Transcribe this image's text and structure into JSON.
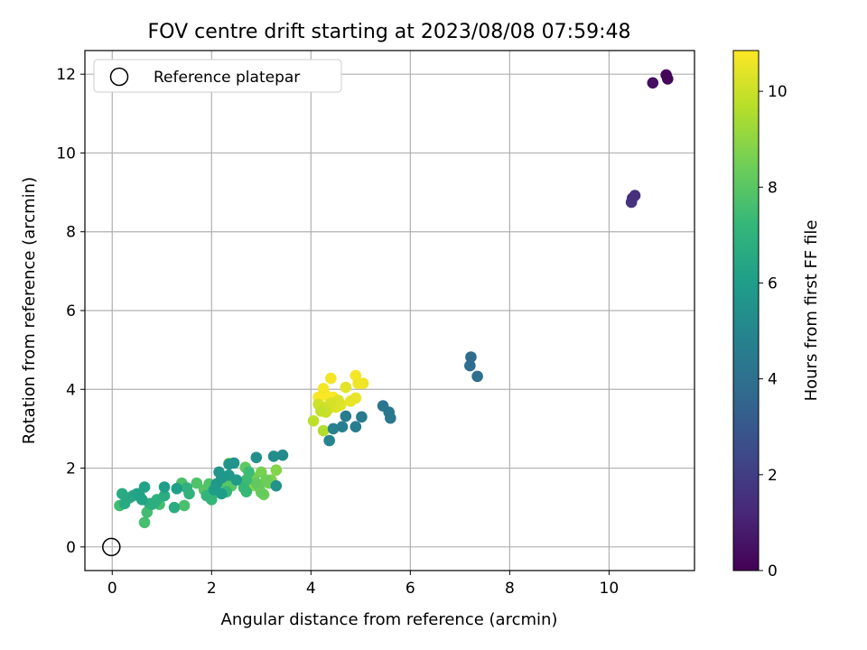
{
  "chart_data": {
    "type": "scatter",
    "title": "FOV centre drift starting at 2023/08/08 07:59:48",
    "xlabel": "Angular distance from reference (arcmin)",
    "ylabel": "Rotation from reference (arcmin)",
    "xlim": [
      -0.55,
      11.72
    ],
    "ylim": [
      -0.6,
      12.6
    ],
    "xticks": [
      0,
      2,
      4,
      6,
      8,
      10
    ],
    "yticks": [
      0,
      2,
      4,
      6,
      8,
      10,
      12
    ],
    "grid": true,
    "legend": {
      "position": "top-left",
      "entries": [
        {
          "label": "Reference platepar",
          "marker": "open-circle"
        }
      ]
    },
    "reference": {
      "x": 0,
      "y": 0
    },
    "colorbar": {
      "label": "Hours from first FF file",
      "min": 0,
      "max": 10.85,
      "ticks": [
        0,
        2,
        4,
        6,
        8,
        10
      ],
      "colormap": "viridis"
    },
    "colormap_stops": [
      "#440154",
      "#482878",
      "#3e4989",
      "#31688e",
      "#26828e",
      "#1f9e89",
      "#35b779",
      "#6ece58",
      "#b5de2b",
      "#fde725"
    ],
    "points": [
      {
        "x": 11.15,
        "y": 11.98,
        "c": 0.1
      },
      {
        "x": 11.18,
        "y": 11.88,
        "c": 0.2
      },
      {
        "x": 10.88,
        "y": 11.78,
        "c": 0.4
      },
      {
        "x": 10.52,
        "y": 8.92,
        "c": 1.5
      },
      {
        "x": 10.45,
        "y": 8.75,
        "c": 1.7
      },
      {
        "x": 10.47,
        "y": 8.85,
        "c": 1.6
      },
      {
        "x": 7.22,
        "y": 4.82,
        "c": 3.8
      },
      {
        "x": 7.2,
        "y": 4.6,
        "c": 3.9
      },
      {
        "x": 7.35,
        "y": 4.33,
        "c": 4.0
      },
      {
        "x": 5.45,
        "y": 3.58,
        "c": 4.2
      },
      {
        "x": 5.57,
        "y": 3.42,
        "c": 4.3
      },
      {
        "x": 5.6,
        "y": 3.27,
        "c": 4.3
      },
      {
        "x": 5.02,
        "y": 3.3,
        "c": 4.5
      },
      {
        "x": 4.9,
        "y": 3.05,
        "c": 4.6
      },
      {
        "x": 4.7,
        "y": 3.32,
        "c": 4.5
      },
      {
        "x": 4.63,
        "y": 3.05,
        "c": 4.7
      },
      {
        "x": 4.45,
        "y": 3.0,
        "c": 4.8
      },
      {
        "x": 4.37,
        "y": 2.7,
        "c": 4.9
      },
      {
        "x": 3.43,
        "y": 2.33,
        "c": 5.2
      },
      {
        "x": 3.25,
        "y": 2.3,
        "c": 5.3
      },
      {
        "x": 2.9,
        "y": 2.27,
        "c": 5.4
      },
      {
        "x": 3.3,
        "y": 1.55,
        "c": 5.5
      },
      {
        "x": 2.45,
        "y": 2.13,
        "c": 5.6
      },
      {
        "x": 2.35,
        "y": 2.1,
        "c": 5.6
      },
      {
        "x": 2.15,
        "y": 1.9,
        "c": 5.7
      },
      {
        "x": 2.2,
        "y": 1.75,
        "c": 5.7
      },
      {
        "x": 2.1,
        "y": 1.6,
        "c": 5.8
      },
      {
        "x": 2.35,
        "y": 1.82,
        "c": 5.8
      },
      {
        "x": 2.5,
        "y": 1.7,
        "c": 5.9
      },
      {
        "x": 2.2,
        "y": 1.35,
        "c": 6.0
      },
      {
        "x": 2.05,
        "y": 1.45,
        "c": 6.0
      },
      {
        "x": 1.3,
        "y": 1.48,
        "c": 6.1
      },
      {
        "x": 1.05,
        "y": 1.52,
        "c": 6.1
      },
      {
        "x": 0.65,
        "y": 1.52,
        "c": 6.2
      },
      {
        "x": 0.55,
        "y": 1.3,
        "c": 6.2
      },
      {
        "x": 0.5,
        "y": 1.35,
        "c": 6.3
      },
      {
        "x": 0.6,
        "y": 1.2,
        "c": 6.3
      },
      {
        "x": 0.42,
        "y": 1.3,
        "c": 6.4
      },
      {
        "x": 0.35,
        "y": 1.25,
        "c": 6.5
      },
      {
        "x": 0.3,
        "y": 1.22,
        "c": 6.5
      },
      {
        "x": 0.25,
        "y": 1.1,
        "c": 6.6
      },
      {
        "x": 0.2,
        "y": 1.35,
        "c": 6.6
      },
      {
        "x": 1.25,
        "y": 1.0,
        "c": 6.7
      },
      {
        "x": 1.05,
        "y": 1.3,
        "c": 6.7
      },
      {
        "x": 0.8,
        "y": 1.08,
        "c": 6.8
      },
      {
        "x": 0.85,
        "y": 1.12,
        "c": 6.8
      },
      {
        "x": 0.75,
        "y": 1.1,
        "c": 6.9
      },
      {
        "x": 0.9,
        "y": 1.2,
        "c": 6.9
      },
      {
        "x": 1.5,
        "y": 1.5,
        "c": 7.0
      },
      {
        "x": 1.55,
        "y": 1.35,
        "c": 7.0
      },
      {
        "x": 1.9,
        "y": 1.3,
        "c": 7.1
      },
      {
        "x": 2.0,
        "y": 1.2,
        "c": 7.2
      },
      {
        "x": 2.3,
        "y": 1.4,
        "c": 7.2
      },
      {
        "x": 2.7,
        "y": 1.4,
        "c": 7.3
      },
      {
        "x": 2.65,
        "y": 1.5,
        "c": 7.3
      },
      {
        "x": 2.75,
        "y": 1.9,
        "c": 7.4
      },
      {
        "x": 2.7,
        "y": 1.7,
        "c": 7.4
      },
      {
        "x": 0.15,
        "y": 1.05,
        "c": 7.5
      },
      {
        "x": 0.7,
        "y": 0.88,
        "c": 7.5
      },
      {
        "x": 0.65,
        "y": 0.62,
        "c": 7.6
      },
      {
        "x": 0.95,
        "y": 1.08,
        "c": 7.6
      },
      {
        "x": 1.45,
        "y": 1.05,
        "c": 7.7
      },
      {
        "x": 1.4,
        "y": 1.62,
        "c": 7.7
      },
      {
        "x": 1.7,
        "y": 1.62,
        "c": 7.8
      },
      {
        "x": 1.95,
        "y": 1.6,
        "c": 7.8
      },
      {
        "x": 2.0,
        "y": 1.5,
        "c": 7.9
      },
      {
        "x": 1.85,
        "y": 1.45,
        "c": 7.9
      },
      {
        "x": 2.25,
        "y": 1.62,
        "c": 8.0
      },
      {
        "x": 2.4,
        "y": 1.55,
        "c": 8.0
      },
      {
        "x": 2.1,
        "y": 1.4,
        "c": 8.1
      },
      {
        "x": 2.68,
        "y": 2.02,
        "c": 8.1
      },
      {
        "x": 2.9,
        "y": 1.62,
        "c": 8.2
      },
      {
        "x": 2.95,
        "y": 1.52,
        "c": 8.3
      },
      {
        "x": 3.0,
        "y": 1.38,
        "c": 8.3
      },
      {
        "x": 3.05,
        "y": 1.33,
        "c": 8.4
      },
      {
        "x": 3.1,
        "y": 1.7,
        "c": 8.4
      },
      {
        "x": 2.85,
        "y": 1.75,
        "c": 8.5
      },
      {
        "x": 3.15,
        "y": 1.62,
        "c": 8.5
      },
      {
        "x": 3.0,
        "y": 1.9,
        "c": 8.6
      },
      {
        "x": 3.2,
        "y": 1.7,
        "c": 8.7
      },
      {
        "x": 3.3,
        "y": 1.95,
        "c": 8.8
      },
      {
        "x": 2.35,
        "y": 2.12,
        "c": 8.9
      },
      {
        "x": 2.8,
        "y": 1.55,
        "c": 9.0
      },
      {
        "x": 4.25,
        "y": 2.95,
        "c": 9.6
      },
      {
        "x": 4.05,
        "y": 3.2,
        "c": 9.8
      },
      {
        "x": 4.2,
        "y": 3.45,
        "c": 9.9
      },
      {
        "x": 4.3,
        "y": 3.42,
        "c": 10.0
      },
      {
        "x": 4.15,
        "y": 3.62,
        "c": 10.1
      },
      {
        "x": 4.25,
        "y": 3.55,
        "c": 10.1
      },
      {
        "x": 4.35,
        "y": 3.5,
        "c": 10.2
      },
      {
        "x": 4.4,
        "y": 3.65,
        "c": 10.2
      },
      {
        "x": 4.5,
        "y": 3.55,
        "c": 10.3
      },
      {
        "x": 4.55,
        "y": 3.72,
        "c": 10.3
      },
      {
        "x": 4.6,
        "y": 3.6,
        "c": 10.4
      },
      {
        "x": 4.7,
        "y": 4.05,
        "c": 10.4
      },
      {
        "x": 4.8,
        "y": 3.7,
        "c": 10.5
      },
      {
        "x": 4.9,
        "y": 3.78,
        "c": 10.5
      },
      {
        "x": 4.95,
        "y": 4.15,
        "c": 10.6
      },
      {
        "x": 5.05,
        "y": 4.15,
        "c": 10.6
      },
      {
        "x": 4.9,
        "y": 4.35,
        "c": 10.7
      },
      {
        "x": 4.4,
        "y": 4.28,
        "c": 10.7
      },
      {
        "x": 4.25,
        "y": 4.02,
        "c": 10.7
      },
      {
        "x": 4.3,
        "y": 3.85,
        "c": 10.8
      },
      {
        "x": 4.15,
        "y": 3.8,
        "c": 10.8
      },
      {
        "x": 4.45,
        "y": 3.8,
        "c": 10.8
      },
      {
        "x": 4.6,
        "y": 3.62,
        "c": 10.8
      }
    ]
  }
}
